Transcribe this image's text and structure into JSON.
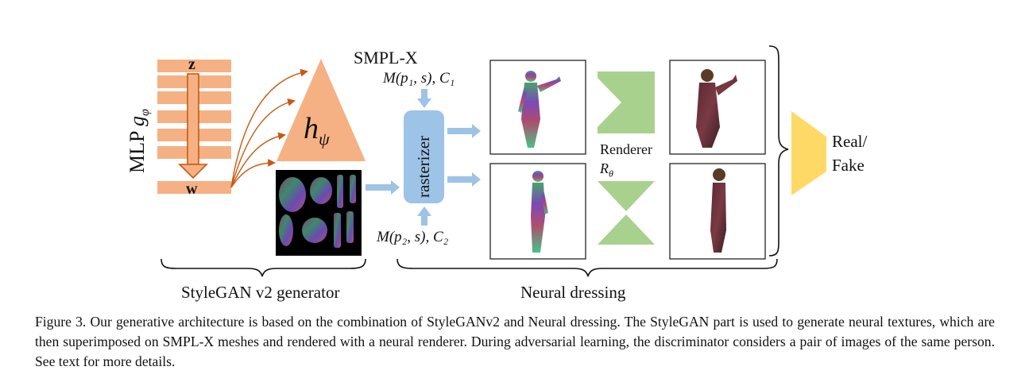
{
  "diagram": {
    "mlp_label": "MLP",
    "mlp_symbol": "g",
    "mlp_symbol_sub": "φ",
    "z_label": "z",
    "w_label": "w",
    "h_symbol": "h",
    "h_symbol_sub": "ψ",
    "smplx_label": "SMPL-X",
    "input1_label": "M(p₁, s), C₁",
    "input2_label": "M(p₂, s), C₂",
    "rasterizer_label": "rasterizer",
    "renderer_label": "Renderer",
    "renderer_symbol": "R",
    "renderer_symbol_sub": "θ",
    "discriminator_label_line1": "Real/",
    "discriminator_label_line2": "Fake",
    "stylegan_brace_label": "StyleGAN v2 generator",
    "dressing_brace_label": "Neural dressing",
    "colors": {
      "mlp_orange": "#f5b183",
      "arrow_orange": "#c55a11",
      "rasterizer_blue": "#9dc3e6",
      "renderer_green": "#a9d18e",
      "discriminator_yellow": "#ffd966"
    }
  },
  "caption": "Figure 3. Our generative architecture is based on the combination of StyleGANv2 and Neural dressing. The StyleGAN part is used to generate neural textures, which are then superimposed on SMPL-X meshes and rendered with a neural renderer. During adversarial learning, the discriminator considers a pair of images of the same person. See text for more details."
}
